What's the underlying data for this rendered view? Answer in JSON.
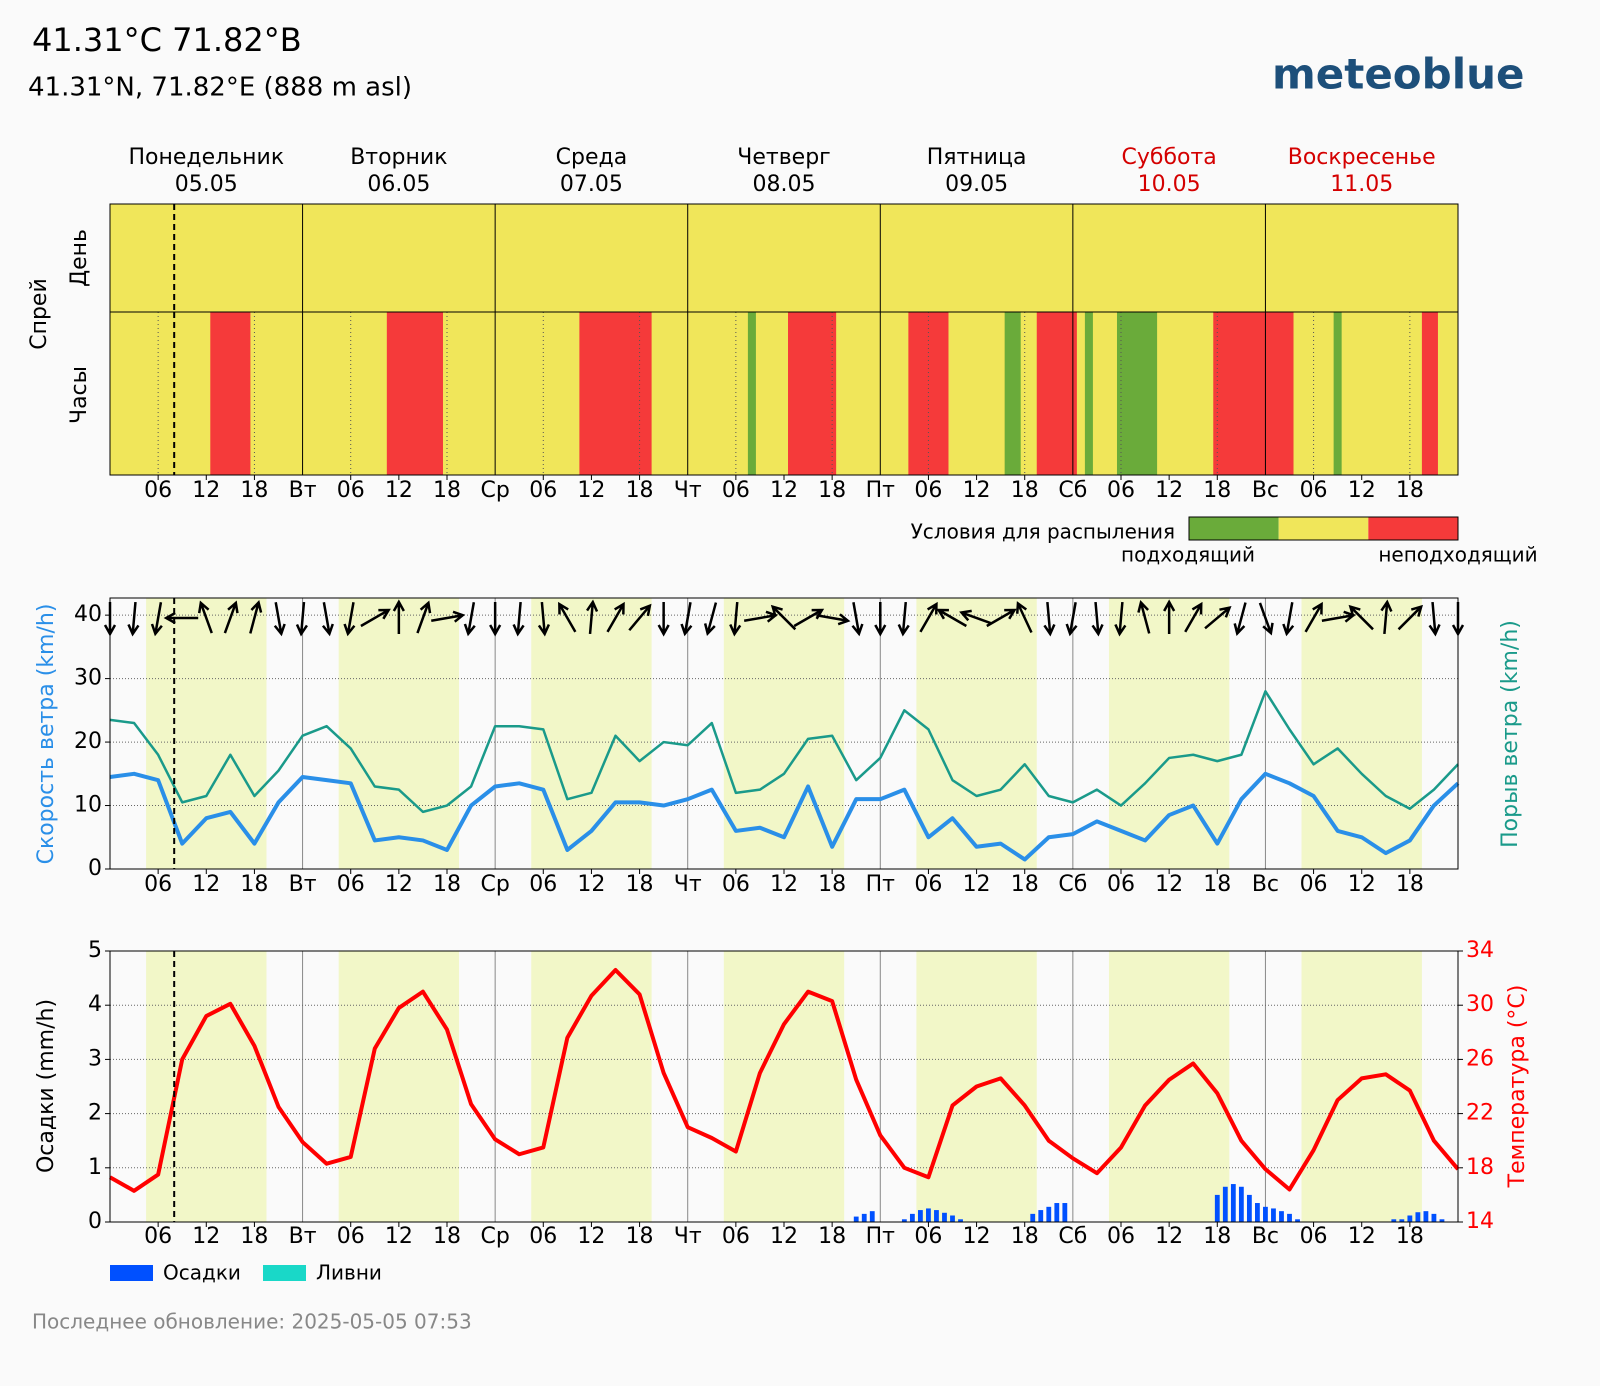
{
  "header": {
    "title": "41.31°C 71.82°B",
    "subtitle": "41.31°N, 71.82°E (888 m asl)",
    "logo": "meteoblue",
    "updated": "Последнее обновление: 2025-05-05 07:53"
  },
  "days": [
    {
      "name": "Понедельник",
      "date": "05.05",
      "abbr": null,
      "weekend": false
    },
    {
      "name": "Вторник",
      "date": "06.05",
      "abbr": "Вт",
      "weekend": false
    },
    {
      "name": "Среда",
      "date": "07.05",
      "abbr": "Ср",
      "weekend": false
    },
    {
      "name": "Четверг",
      "date": "08.05",
      "abbr": "Чт",
      "weekend": false
    },
    {
      "name": "Пятница",
      "date": "09.05",
      "abbr": "Пт",
      "weekend": false
    },
    {
      "name": "Суббота",
      "date": "10.05",
      "abbr": "Сб",
      "weekend": true
    },
    {
      "name": "Воскресенье",
      "date": "11.05",
      "abbr": "Вс",
      "weekend": true
    }
  ],
  "hour_labels": [
    "06",
    "12",
    "18"
  ],
  "daylight": [
    4.5,
    19.5
  ],
  "now": 8,
  "chart_data": [
    {
      "type": "spray",
      "ylabel": "Спрей",
      "rows": [
        "День",
        "Часы"
      ],
      "day_rating": [
        1,
        1,
        1,
        1,
        1,
        1,
        1
      ],
      "default_rating": 1,
      "segments": [
        {
          "start": 12.5,
          "end": 17.5,
          "rating": 2
        },
        {
          "start": 34.5,
          "end": 41.5,
          "rating": 2
        },
        {
          "start": 58.5,
          "end": 67.5,
          "rating": 2
        },
        {
          "start": 79.5,
          "end": 80.5,
          "rating": 0
        },
        {
          "start": 84.5,
          "end": 90.5,
          "rating": 2
        },
        {
          "start": 99.5,
          "end": 104.5,
          "rating": 2
        },
        {
          "start": 111.5,
          "end": 113.5,
          "rating": 0
        },
        {
          "start": 115.5,
          "end": 120.5,
          "rating": 2
        },
        {
          "start": 121.5,
          "end": 122.5,
          "rating": 0
        },
        {
          "start": 125.5,
          "end": 130.5,
          "rating": 0
        },
        {
          "start": 137.5,
          "end": 147.5,
          "rating": 2
        },
        {
          "start": 152.5,
          "end": 153.5,
          "rating": 0
        },
        {
          "start": 163.5,
          "end": 165.5,
          "rating": 2
        }
      ],
      "legend": {
        "title": "Условия для распыления",
        "colors": [
          "#6aab3a",
          "#f0e65a",
          "#f53a3a"
        ],
        "labels": [
          "подходящий",
          "неподходящий"
        ]
      }
    },
    {
      "type": "line",
      "ylabel": "Скорость ветра (km/h)",
      "y2label": "Порыв ветра (km/h)",
      "ylim": [
        0,
        42.7
      ],
      "yticks": [
        0,
        10,
        20,
        30,
        40
      ],
      "y2lim": [
        0,
        42.7
      ],
      "xlim": [
        0,
        168
      ],
      "grid": true,
      "x": [
        0,
        3,
        6,
        9,
        12,
        15,
        18,
        21,
        24,
        27,
        30,
        33,
        36,
        39,
        42,
        45,
        48,
        51,
        54,
        57,
        60,
        63,
        66,
        69,
        72,
        75,
        78,
        81,
        84,
        87,
        90,
        93,
        96,
        99,
        102,
        105,
        108,
        111,
        114,
        117,
        120,
        123,
        126,
        129,
        132,
        135,
        138,
        141,
        144,
        147,
        150,
        153,
        156,
        159,
        162,
        165,
        168
      ],
      "series": [
        {
          "color": "#2a8fe8",
          "values": [
            14.5,
            15,
            14,
            4,
            8,
            9,
            4,
            10.5,
            14.5,
            14,
            13.5,
            4.5,
            5,
            4.5,
            3,
            10,
            13,
            13.5,
            12.5,
            3,
            6,
            10.5,
            10.5,
            10,
            11,
            12.5,
            6,
            6.5,
            5,
            13,
            3.5,
            11,
            11,
            12.5,
            5,
            8,
            3.5,
            4,
            1.5,
            5,
            5.5,
            7.5,
            6,
            4.5,
            8.5,
            10,
            4,
            11,
            15,
            13.5,
            11.5,
            6,
            5,
            2.5,
            4.5,
            10,
            13.5
          ]
        },
        {
          "color": "#1a9a8a",
          "axis": "y2",
          "values": [
            23.5,
            23,
            18,
            10.5,
            11.5,
            18,
            11.5,
            15.5,
            21,
            22.5,
            19,
            13,
            12.5,
            9,
            10,
            13,
            22.5,
            22.5,
            22,
            11,
            12,
            21,
            17,
            20,
            19.5,
            23,
            12,
            12.5,
            15,
            20.5,
            21,
            14,
            17.5,
            25,
            22,
            14,
            11.5,
            12.5,
            16.5,
            11.5,
            10.5,
            12.5,
            10,
            13.5,
            17.5,
            18,
            17,
            18,
            28,
            22,
            16.5,
            19,
            15,
            11.5,
            9.5,
            12.5,
            16.5
          ]
        }
      ],
      "direction": [
        0,
        5,
        10,
        90,
        160,
        200,
        195,
        350,
        5,
        350,
        10,
        240,
        180,
        200,
        260,
        10,
        0,
        5,
        355,
        150,
        185,
        210,
        220,
        0,
        10,
        15,
        5,
        260,
        135,
        240,
        280,
        350,
        0,
        5,
        210,
        120,
        110,
        240,
        155,
        355,
        10,
        355,
        5,
        165,
        180,
        210,
        230,
        15,
        340,
        10,
        210,
        260,
        135,
        185,
        225,
        355,
        0
      ]
    },
    {
      "type": "bar_line",
      "ylabel": "Осадки (mm/h)",
      "y2label": "Температура (°C)",
      "ylim": [
        0,
        5
      ],
      "yticks": [
        0,
        1,
        2,
        3,
        4,
        5
      ],
      "y2lim": [
        14,
        34
      ],
      "y2ticks": [
        14,
        18,
        22,
        26,
        30,
        34
      ],
      "xlim": [
        0,
        168
      ],
      "grid": true,
      "series": [
        {
          "name": "Осадки",
          "color": "#0050ff",
          "x": [
            93,
            94,
            95,
            99,
            100,
            101,
            102,
            103,
            104,
            105,
            106,
            115,
            116,
            117,
            118,
            119,
            138,
            139,
            140,
            141,
            142,
            143,
            144,
            145,
            146,
            147,
            148,
            160,
            161,
            162,
            163,
            164,
            165,
            166
          ],
          "values": [
            0.1,
            0.15,
            0.2,
            0.05,
            0.15,
            0.22,
            0.25,
            0.22,
            0.17,
            0.12,
            0.05,
            0.15,
            0.22,
            0.28,
            0.35,
            0.35,
            0.5,
            0.65,
            0.7,
            0.65,
            0.5,
            0.35,
            0.28,
            0.25,
            0.2,
            0.15,
            0.05,
            0.05,
            0.05,
            0.12,
            0.18,
            0.2,
            0.15,
            0.05
          ]
        },
        {
          "name": "Ливни",
          "color": "#19d8c8",
          "x": [],
          "values": []
        },
        {
          "color": "#ff0000",
          "axis": "y2",
          "x": [
            0,
            3,
            6,
            9,
            12,
            15,
            18,
            21,
            24,
            27,
            30,
            33,
            36,
            39,
            42,
            45,
            48,
            51,
            54,
            57,
            60,
            63,
            66,
            69,
            72,
            75,
            78,
            81,
            84,
            87,
            90,
            93,
            96,
            99,
            102,
            105,
            108,
            111,
            114,
            117,
            120,
            123,
            126,
            129,
            132,
            135,
            138,
            141,
            144,
            147,
            150,
            153,
            156,
            159,
            162,
            165,
            168
          ],
          "values": [
            17.3,
            16.3,
            17.5,
            26,
            29.2,
            30.1,
            27,
            22.5,
            19.9,
            18.3,
            18.8,
            26.8,
            29.8,
            31,
            28.2,
            22.7,
            20.1,
            19,
            19.5,
            27.6,
            30.7,
            32.6,
            30.8,
            25,
            21,
            20.2,
            19.2,
            25,
            28.6,
            31,
            30.3,
            24.5,
            20.4,
            18,
            17.3,
            22.6,
            24,
            24.6,
            22.6,
            20,
            18.7,
            17.6,
            19.5,
            22.6,
            24.5,
            25.7,
            23.5,
            20,
            17.9,
            16.4,
            19.3,
            23,
            24.6,
            24.9,
            23.7,
            20,
            17.9
          ]
        }
      ]
    }
  ]
}
